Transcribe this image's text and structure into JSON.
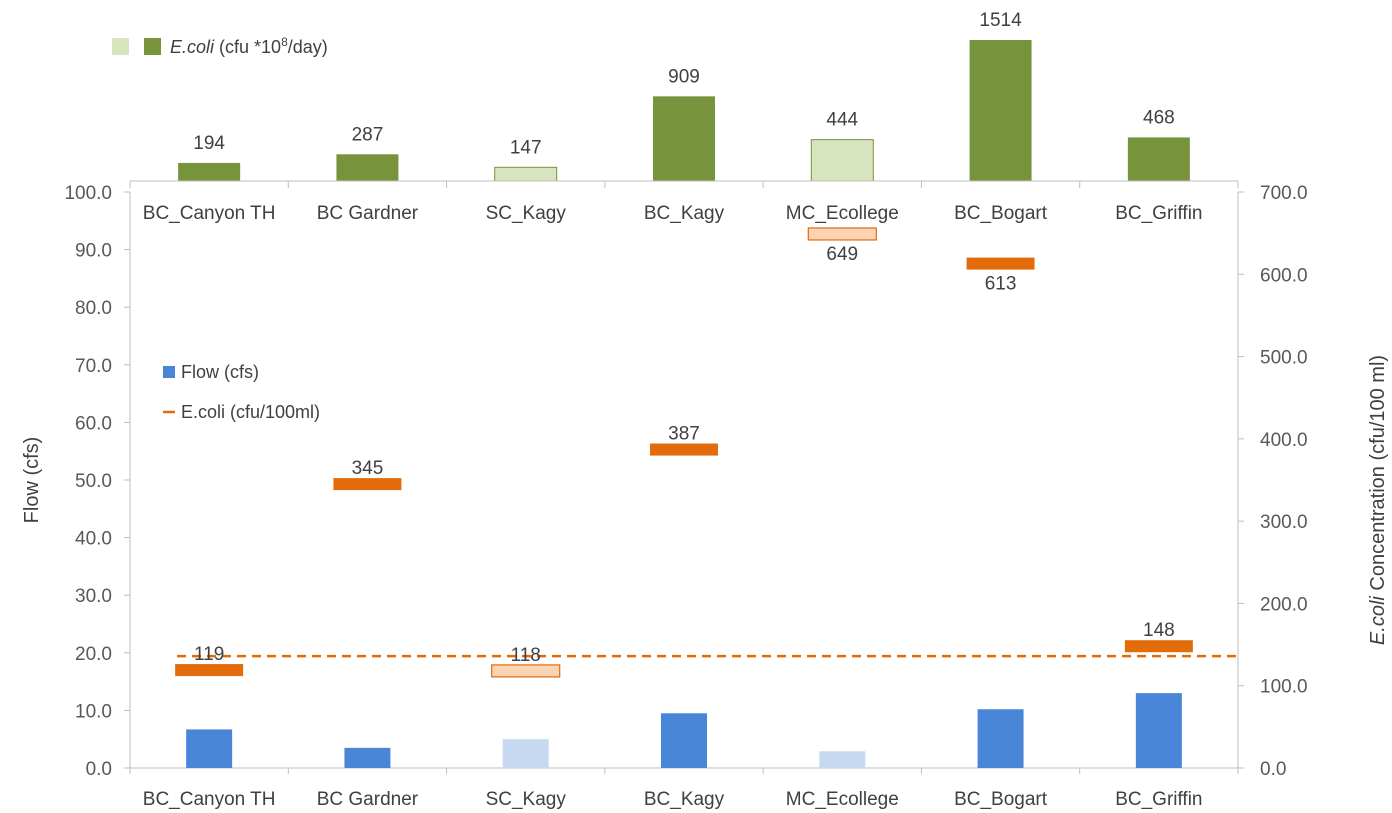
{
  "chart_data": {
    "type": "bar",
    "categories": [
      "BC_Canyon TH",
      "BC Gardner",
      "SC_Kagy",
      "BC_Kagy",
      "MC_Ecollege",
      "BC_Bogart",
      "BC_Griffin"
    ],
    "load_panel": {
      "legend_name": "E.coli",
      "legend_unit": "(cfu *10",
      "legend_exp": "8",
      "legend_tail": "/day)",
      "values": [
        194,
        287,
        147,
        909,
        444,
        1514,
        468
      ],
      "light": [
        false,
        false,
        true,
        false,
        true,
        false,
        false
      ]
    },
    "flow_series": {
      "name": "Flow (cfs)",
      "values": [
        6.7,
        3.5,
        5.0,
        9.5,
        2.9,
        10.2,
        13.0
      ],
      "light": [
        false,
        false,
        true,
        false,
        true,
        false,
        false
      ]
    },
    "concentration_series": {
      "name": "E.coli (cfu/100ml)",
      "values": [
        119,
        345,
        118,
        387,
        649,
        613,
        148
      ],
      "light": [
        false,
        false,
        true,
        false,
        true,
        false,
        false
      ],
      "reference_line": 136
    },
    "y_left": {
      "label": "Flow (cfs)",
      "ylim": [
        0,
        100
      ],
      "ticks": [
        "0.0",
        "10.0",
        "20.0",
        "30.0",
        "40.0",
        "50.0",
        "60.0",
        "70.0",
        "80.0",
        "90.0",
        "100.0"
      ]
    },
    "y_right": {
      "label_italic": "E.coli",
      "label": "Concentration  (cfu/100 ml)",
      "ylim": [
        0,
        700
      ],
      "ticks": [
        "0.0",
        "100.0",
        "200.0",
        "300.0",
        "400.0",
        "500.0",
        "600.0",
        "700.0"
      ]
    },
    "grid": false,
    "colors": {
      "load_dark": "#77933c",
      "load_light": "#d7e4bd",
      "flow_dark": "#4a86d8",
      "flow_light": "#c6d9f1",
      "conc_dark": "#e26b0a",
      "conc_light": "#fbd4b4",
      "reference": "#e26b0a",
      "axis": "#bfbfbf"
    }
  }
}
